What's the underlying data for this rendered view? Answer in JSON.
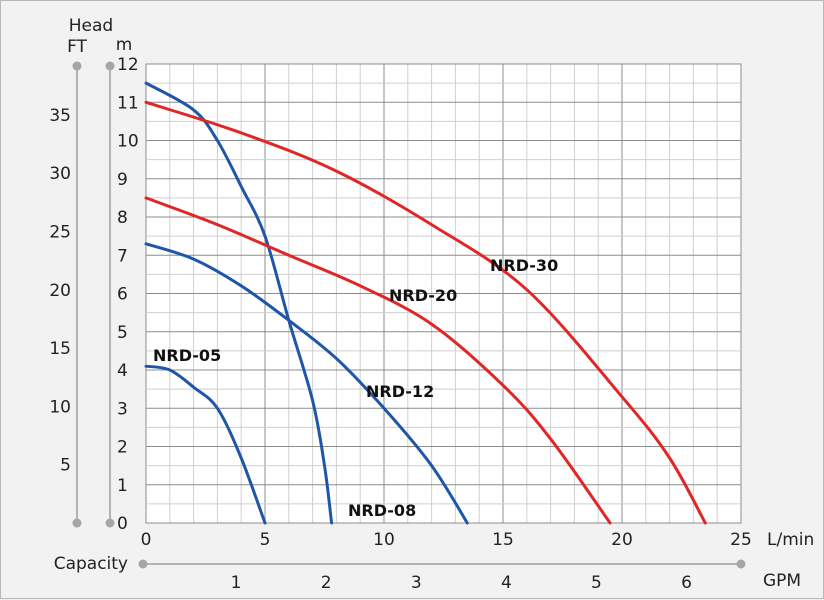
{
  "chart_data": {
    "type": "line",
    "y_title": "Head",
    "y_left_unit": "FT",
    "y_right_unit": "m",
    "x_title": "Capacity",
    "x_unit_top": "L/min",
    "x_unit_bottom": "GPM",
    "xlim": [
      0,
      25
    ],
    "ylim": [
      0,
      12
    ],
    "x_ticks": [
      "0",
      "5",
      "10",
      "15",
      "20",
      "25"
    ],
    "y_ticks_m": [
      "0",
      "1",
      "2",
      "3",
      "4",
      "5",
      "6",
      "7",
      "8",
      "9",
      "10",
      "11",
      "12"
    ],
    "y_ticks_ft": [
      "5",
      "10",
      "15",
      "20",
      "25",
      "30",
      "35"
    ],
    "gpm_ticks": [
      "1",
      "2",
      "3",
      "4",
      "5",
      "6"
    ],
    "grid": true,
    "series": [
      {
        "name": "NRD-05",
        "color": "#1f56a8",
        "x": [
          0,
          1,
          2,
          3,
          4,
          5
        ],
        "y": [
          4.1,
          4.0,
          3.55,
          3.0,
          1.7,
          0
        ]
      },
      {
        "name": "NRD-08",
        "color": "#1f56a8",
        "x": [
          0,
          2,
          3,
          4,
          5,
          6,
          7,
          7.5,
          7.8
        ],
        "y": [
          11.5,
          10.8,
          10.0,
          8.8,
          7.5,
          5.3,
          3.2,
          1.5,
          0
        ]
      },
      {
        "name": "NRD-12",
        "color": "#1f56a8",
        "x": [
          0,
          2,
          4,
          6,
          8,
          10,
          12,
          13.5
        ],
        "y": [
          7.3,
          6.9,
          6.2,
          5.3,
          4.3,
          3.0,
          1.5,
          0
        ]
      },
      {
        "name": "NRD-20",
        "color": "#e02626",
        "x": [
          0,
          3,
          6,
          9,
          12,
          15,
          17,
          19.5
        ],
        "y": [
          8.5,
          7.8,
          7.0,
          6.2,
          5.2,
          3.6,
          2.2,
          0
        ]
      },
      {
        "name": "NRD-30",
        "color": "#e02626",
        "x": [
          0,
          4,
          8,
          12,
          16,
          20,
          22,
          23.5
        ],
        "y": [
          11.0,
          10.2,
          9.2,
          7.8,
          6.1,
          3.3,
          1.7,
          0
        ]
      }
    ]
  }
}
